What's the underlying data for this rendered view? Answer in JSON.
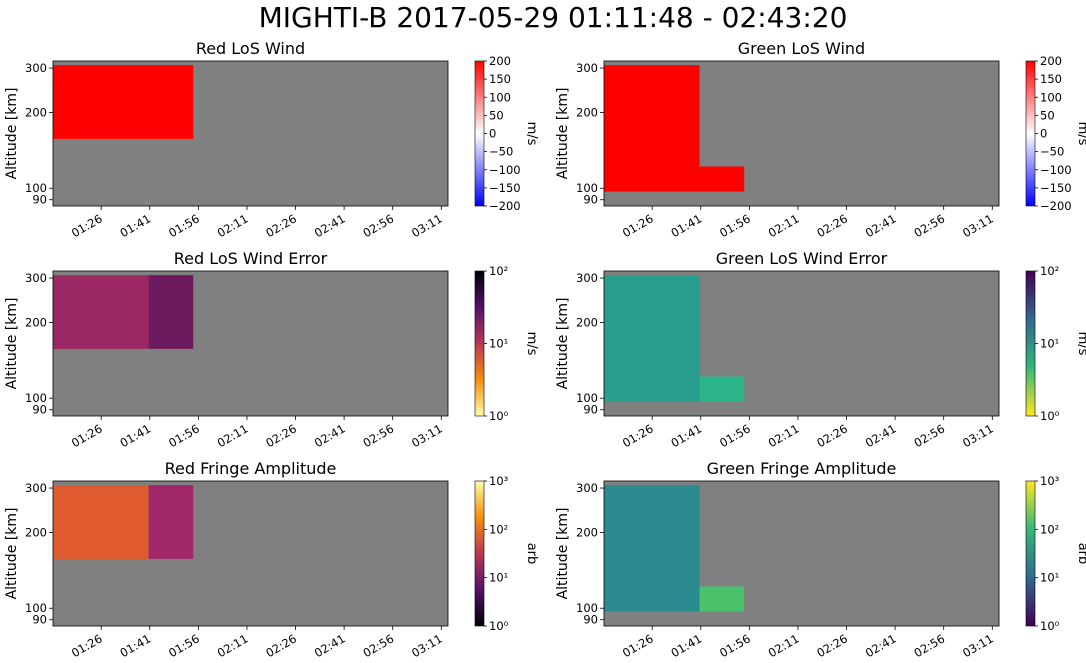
{
  "suptitle": "MIGHTI-B  2017-05-29 01:11:48 - 02:43:20",
  "colors": {
    "nodata": "#808080",
    "axes_bg": "#ffffff"
  },
  "chart_data": [
    {
      "type": "heatmap",
      "title": "Red LoS Wind",
      "ylabel": "Altitude [km]",
      "xticks": [
        "01:26",
        "01:41",
        "01:56",
        "02:11",
        "02:26",
        "02:41",
        "02:56",
        "03:11"
      ],
      "yticks": [
        "90",
        "100",
        "200",
        "300"
      ],
      "ylim": [
        85,
        320
      ],
      "yscale": "log",
      "colorbar": {
        "label": "m/s",
        "scale": "linear",
        "range": [
          -200,
          200
        ],
        "ticks": [
          "200",
          "150",
          "100",
          "50",
          "0",
          "−50",
          "−100",
          "−150",
          "−200"
        ],
        "colormap": "bwr"
      },
      "blocks": [
        {
          "t": [
            0.0,
            0.355
          ],
          "alt": [
            157,
            308
          ],
          "color": "#ff0000"
        }
      ]
    },
    {
      "type": "heatmap",
      "title": "Green LoS Wind",
      "ylabel": "Altitude [km]",
      "xticks": [
        "01:26",
        "01:41",
        "01:56",
        "02:11",
        "02:26",
        "02:41",
        "02:56",
        "03:11"
      ],
      "yticks": [
        "90",
        "100",
        "200",
        "300"
      ],
      "ylim": [
        85,
        320
      ],
      "yscale": "log",
      "colorbar": {
        "label": "m/s",
        "scale": "linear",
        "range": [
          -200,
          200
        ],
        "ticks": [
          "200",
          "150",
          "100",
          "50",
          "0",
          "−50",
          "−100",
          "−150",
          "−200"
        ],
        "colormap": "bwr"
      },
      "blocks": [
        {
          "t": [
            0.0,
            0.242
          ],
          "alt": [
            97,
            308
          ],
          "color": "#ff0000"
        },
        {
          "t": [
            0.242,
            0.355
          ],
          "alt": [
            97,
            122
          ],
          "color": "#ff0000"
        }
      ]
    },
    {
      "type": "heatmap",
      "title": "Red LoS Wind Error",
      "ylabel": "Altitude [km]",
      "xticks": [
        "01:26",
        "01:41",
        "01:56",
        "02:11",
        "02:26",
        "02:41",
        "02:56",
        "03:11"
      ],
      "yticks": [
        "90",
        "100",
        "200",
        "300"
      ],
      "ylim": [
        85,
        320
      ],
      "yscale": "log",
      "colorbar": {
        "label": "m/s",
        "scale": "log",
        "range": [
          1,
          100
        ],
        "ticks": [
          "10²",
          "10¹",
          "10⁰"
        ],
        "colormap": "inferno_r"
      },
      "blocks": [
        {
          "t": [
            0.0,
            0.242
          ],
          "alt": [
            157,
            308
          ],
          "color": "#9a2863"
        },
        {
          "t": [
            0.242,
            0.355
          ],
          "alt": [
            157,
            308
          ],
          "color": "#6e1a5e"
        }
      ]
    },
    {
      "type": "heatmap",
      "title": "Green LoS Wind Error",
      "ylabel": "Altitude [km]",
      "xticks": [
        "01:26",
        "01:41",
        "01:56",
        "02:11",
        "02:26",
        "02:41",
        "02:56",
        "03:11"
      ],
      "yticks": [
        "90",
        "100",
        "200",
        "300"
      ],
      "ylim": [
        85,
        320
      ],
      "yscale": "log",
      "colorbar": {
        "label": "m/s",
        "scale": "log",
        "range": [
          1,
          100
        ],
        "ticks": [
          "10²",
          "10¹",
          "10⁰"
        ],
        "colormap": "viridis_r"
      },
      "blocks": [
        {
          "t": [
            0.0,
            0.242
          ],
          "alt": [
            97,
            308
          ],
          "color": "#2a9e8c"
        },
        {
          "t": [
            0.242,
            0.355
          ],
          "alt": [
            97,
            122
          ],
          "color": "#2cb58a"
        }
      ]
    },
    {
      "type": "heatmap",
      "title": "Red Fringe Amplitude",
      "ylabel": "Altitude [km]",
      "xticks": [
        "01:26",
        "01:41",
        "01:56",
        "02:11",
        "02:26",
        "02:41",
        "02:56",
        "03:11"
      ],
      "yticks": [
        "90",
        "100",
        "200",
        "300"
      ],
      "ylim": [
        85,
        320
      ],
      "yscale": "log",
      "colorbar": {
        "label": "arb",
        "scale": "log",
        "range": [
          1,
          1000
        ],
        "ticks": [
          "10³",
          "10²",
          "10¹",
          "10⁰"
        ],
        "colormap": "inferno"
      },
      "blocks": [
        {
          "t": [
            0.0,
            0.242
          ],
          "alt": [
            157,
            308
          ],
          "color": "#e05a30"
        },
        {
          "t": [
            0.242,
            0.355
          ],
          "alt": [
            157,
            308
          ],
          "color": "#a0286a"
        }
      ]
    },
    {
      "type": "heatmap",
      "title": "Green Fringe Amplitude",
      "ylabel": "Altitude [km]",
      "xticks": [
        "01:26",
        "01:41",
        "01:56",
        "02:11",
        "02:26",
        "02:41",
        "02:56",
        "03:11"
      ],
      "yticks": [
        "90",
        "100",
        "200",
        "300"
      ],
      "ylim": [
        85,
        320
      ],
      "yscale": "log",
      "colorbar": {
        "label": "arb",
        "scale": "log",
        "range": [
          1,
          1000
        ],
        "ticks": [
          "10³",
          "10²",
          "10¹",
          "10⁰"
        ],
        "colormap": "viridis"
      },
      "blocks": [
        {
          "t": [
            0.0,
            0.242
          ],
          "alt": [
            97,
            308
          ],
          "color": "#2a8a8e"
        },
        {
          "t": [
            0.242,
            0.355
          ],
          "alt": [
            97,
            122
          ],
          "color": "#4cc16c"
        }
      ]
    }
  ]
}
